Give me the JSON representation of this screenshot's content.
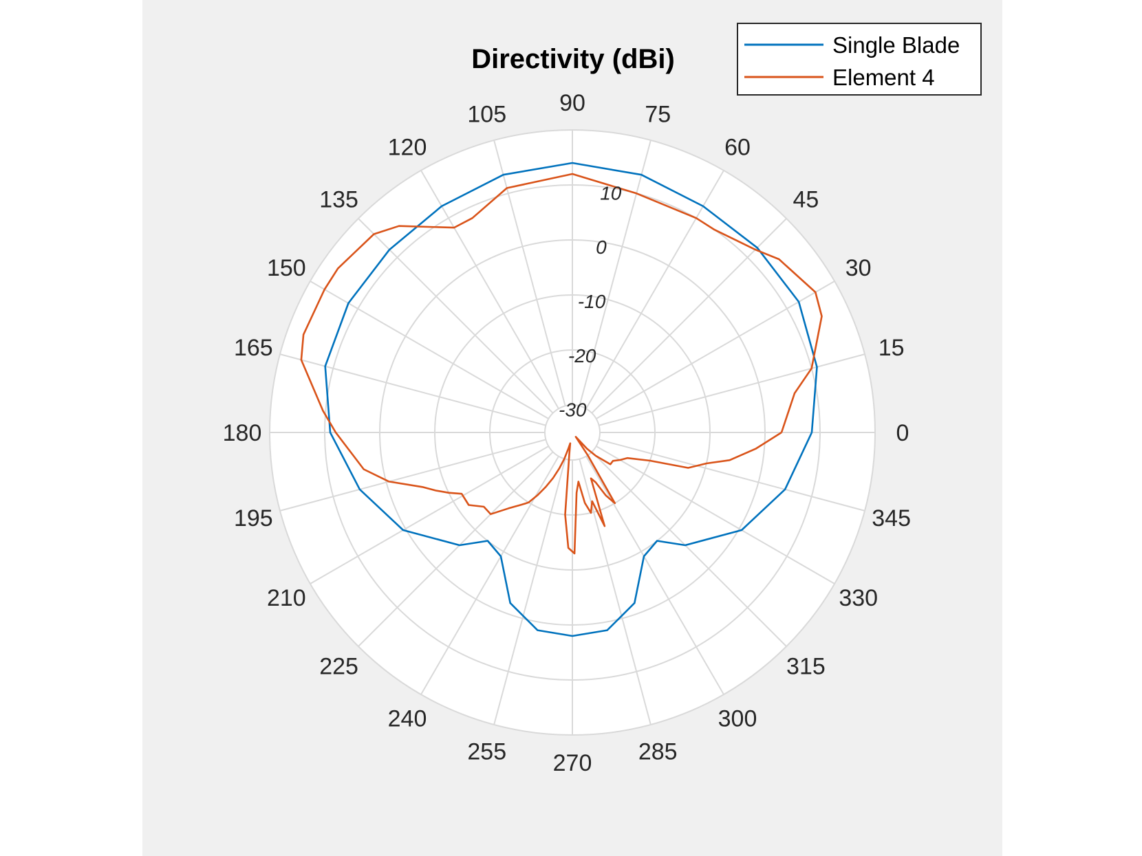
{
  "chart_data": {
    "type": "line",
    "coordinate_system": "polar",
    "title": "Directivity (dBi)",
    "theta_unit": "degrees",
    "theta_ticks": [
      0,
      15,
      30,
      45,
      60,
      75,
      90,
      105,
      120,
      135,
      150,
      165,
      180,
      195,
      210,
      225,
      240,
      255,
      270,
      285,
      300,
      315,
      330,
      345
    ],
    "r_ticks": [
      -30,
      -20,
      -10,
      0,
      10
    ],
    "rlim": [
      -35,
      20
    ],
    "grid": true,
    "legend_position": "top-right",
    "series": [
      {
        "name": "Single Blade",
        "color": "#0072bd",
        "theta": [
          0,
          15,
          30,
          45,
          60,
          75,
          90,
          105,
          120,
          135,
          150,
          165,
          180,
          195,
          210,
          225,
          232,
          240,
          250,
          260,
          270,
          280,
          290,
          300,
          308,
          315,
          330,
          345,
          360
        ],
        "r": [
          8.5,
          11,
          12.5,
          12.5,
          12.5,
          13.5,
          14,
          13.5,
          12.5,
          12,
          12,
          11.5,
          9,
          5,
          0.5,
          -6,
          -10,
          -9,
          -2,
          1.5,
          2,
          1.5,
          -2,
          -9,
          -10,
          -6,
          0.5,
          5,
          8.5
        ]
      },
      {
        "name": "Element 4",
        "color": "#d95319",
        "theta": [
          0,
          10,
          15,
          25,
          30,
          40,
          45,
          55,
          60,
          75,
          90,
          105,
          115,
          120,
          130,
          135,
          145,
          150,
          160,
          165,
          175,
          180,
          190,
          195,
          200,
          203,
          206,
          209,
          215,
          220,
          225,
          230,
          235,
          238,
          241,
          244,
          247,
          250,
          253,
          256,
          259,
          262,
          265,
          268,
          271,
          274,
          277,
          280,
          283,
          286,
          289,
          292,
          295,
          298,
          301,
          304,
          308,
          312,
          315,
          320,
          325,
          330,
          335,
          340,
          343,
          347,
          350,
          355,
          360
        ],
        "r": [
          3,
          6,
          10,
          15,
          16,
          14,
          12,
          10,
          10,
          10,
          12,
          11,
          8,
          8,
          14,
          16,
          17,
          17,
          17,
          16,
          10.5,
          8,
          3.5,
          -0.5,
          -6,
          -8,
          -10,
          -12,
          -12,
          -14,
          -14,
          -17,
          -19,
          -20,
          -22,
          -24,
          -26,
          -28,
          -30,
          -32,
          -33,
          -31,
          -20,
          -14,
          -13,
          -24,
          -26,
          -22,
          -20,
          -22,
          -17,
          -26,
          -25,
          -22,
          -20,
          -30,
          -34,
          -31,
          -29,
          -26,
          -26,
          -25,
          -24,
          -20,
          -13,
          -10,
          -6,
          -1.5,
          3
        ]
      }
    ]
  }
}
